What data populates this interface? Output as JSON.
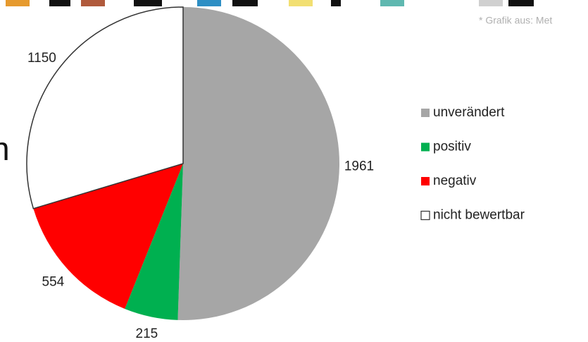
{
  "chart_data": {
    "type": "pie",
    "categories": [
      "unverändert",
      "positiv",
      "negativ",
      "nicht bewertbar"
    ],
    "values": [
      1961,
      215,
      554,
      1150
    ],
    "colors": [
      "#a6a6a6",
      "#00b050",
      "#ff0000",
      "#ffffff"
    ],
    "legend": "right",
    "source_note": "* Grafik aus: Met",
    "fragment_text": "n"
  }
}
